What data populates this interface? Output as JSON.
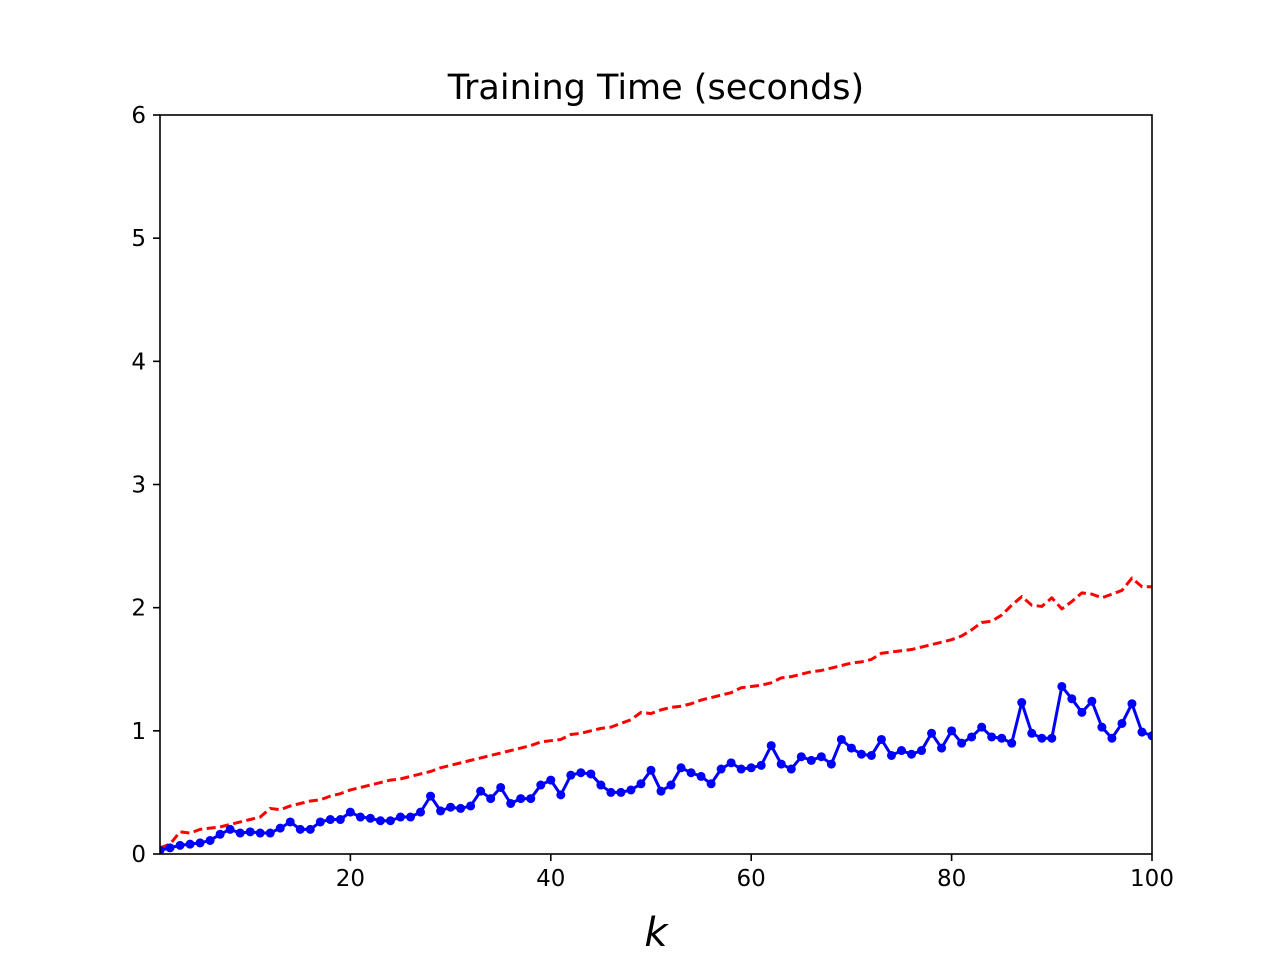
{
  "chart_data": {
    "type": "line",
    "title": "Training Time (seconds)",
    "xlabel": "k",
    "ylabel": "",
    "xlim": [
      1,
      100
    ],
    "ylim": [
      0,
      6
    ],
    "xticks": [
      20,
      40,
      60,
      80,
      100
    ],
    "yticks": [
      0,
      1,
      2,
      3,
      4,
      5,
      6
    ],
    "grid": false,
    "legend": "none",
    "series": [
      {
        "color": "#ff0000",
        "style": "dashed",
        "marker": "none",
        "x": [
          1,
          2,
          3,
          4,
          5,
          6,
          7,
          8,
          9,
          10,
          11,
          12,
          13,
          14,
          15,
          16,
          17,
          18,
          19,
          20,
          21,
          22,
          23,
          24,
          25,
          26,
          27,
          28,
          29,
          30,
          31,
          32,
          33,
          34,
          35,
          36,
          37,
          38,
          39,
          40,
          41,
          42,
          43,
          44,
          45,
          46,
          47,
          48,
          49,
          50,
          51,
          52,
          53,
          54,
          55,
          56,
          57,
          58,
          59,
          60,
          61,
          62,
          63,
          64,
          65,
          66,
          67,
          68,
          69,
          70,
          71,
          72,
          73,
          74,
          75,
          76,
          77,
          78,
          79,
          80,
          81,
          82,
          83,
          84,
          85,
          86,
          87,
          88,
          89,
          90,
          91,
          92,
          93,
          94,
          95,
          96,
          97,
          98,
          99,
          100
        ],
        "values": [
          0.05,
          0.08,
          0.18,
          0.17,
          0.2,
          0.21,
          0.22,
          0.24,
          0.26,
          0.28,
          0.3,
          0.37,
          0.36,
          0.39,
          0.41,
          0.43,
          0.44,
          0.47,
          0.49,
          0.52,
          0.54,
          0.56,
          0.58,
          0.6,
          0.61,
          0.63,
          0.65,
          0.67,
          0.7,
          0.72,
          0.74,
          0.76,
          0.78,
          0.8,
          0.82,
          0.84,
          0.86,
          0.88,
          0.91,
          0.92,
          0.93,
          0.97,
          0.98,
          1.0,
          1.02,
          1.03,
          1.06,
          1.09,
          1.15,
          1.14,
          1.17,
          1.19,
          1.2,
          1.22,
          1.25,
          1.27,
          1.29,
          1.31,
          1.35,
          1.36,
          1.37,
          1.39,
          1.43,
          1.44,
          1.46,
          1.48,
          1.49,
          1.51,
          1.53,
          1.55,
          1.56,
          1.58,
          1.63,
          1.64,
          1.65,
          1.66,
          1.68,
          1.7,
          1.72,
          1.74,
          1.77,
          1.82,
          1.88,
          1.89,
          1.94,
          2.02,
          2.09,
          2.02,
          2.01,
          2.08,
          1.99,
          2.05,
          2.12,
          2.11,
          2.08,
          2.11,
          2.14,
          2.24,
          2.17,
          2.17
        ]
      },
      {
        "color": "#0000ff",
        "style": "solid",
        "marker": "dot",
        "x": [
          1,
          2,
          3,
          4,
          5,
          6,
          7,
          8,
          9,
          10,
          11,
          12,
          13,
          14,
          15,
          16,
          17,
          18,
          19,
          20,
          21,
          22,
          23,
          24,
          25,
          26,
          27,
          28,
          29,
          30,
          31,
          32,
          33,
          34,
          35,
          36,
          37,
          38,
          39,
          40,
          41,
          42,
          43,
          44,
          45,
          46,
          47,
          48,
          49,
          50,
          51,
          52,
          53,
          54,
          55,
          56,
          57,
          58,
          59,
          60,
          61,
          62,
          63,
          64,
          65,
          66,
          67,
          68,
          69,
          70,
          71,
          72,
          73,
          74,
          75,
          76,
          77,
          78,
          79,
          80,
          81,
          82,
          83,
          84,
          85,
          86,
          87,
          88,
          89,
          90,
          91,
          92,
          93,
          94,
          95,
          96,
          97,
          98,
          99,
          100
        ],
        "values": [
          0.03,
          0.05,
          0.07,
          0.08,
          0.09,
          0.11,
          0.16,
          0.2,
          0.17,
          0.18,
          0.17,
          0.17,
          0.21,
          0.26,
          0.2,
          0.2,
          0.26,
          0.28,
          0.28,
          0.34,
          0.3,
          0.29,
          0.27,
          0.27,
          0.3,
          0.3,
          0.34,
          0.47,
          0.35,
          0.38,
          0.37,
          0.39,
          0.51,
          0.45,
          0.54,
          0.41,
          0.45,
          0.45,
          0.56,
          0.6,
          0.48,
          0.64,
          0.66,
          0.65,
          0.56,
          0.5,
          0.5,
          0.52,
          0.57,
          0.68,
          0.51,
          0.56,
          0.7,
          0.66,
          0.63,
          0.57,
          0.69,
          0.74,
          0.69,
          0.7,
          0.72,
          0.88,
          0.73,
          0.69,
          0.79,
          0.76,
          0.79,
          0.73,
          0.93,
          0.86,
          0.81,
          0.8,
          0.93,
          0.8,
          0.84,
          0.81,
          0.84,
          0.98,
          0.86,
          1.0,
          0.9,
          0.95,
          1.03,
          0.95,
          0.94,
          0.9,
          1.23,
          0.98,
          0.94,
          0.94,
          1.36,
          1.26,
          1.15,
          1.24,
          1.03,
          0.94,
          1.06,
          1.22,
          0.99,
          0.96
        ]
      }
    ]
  }
}
